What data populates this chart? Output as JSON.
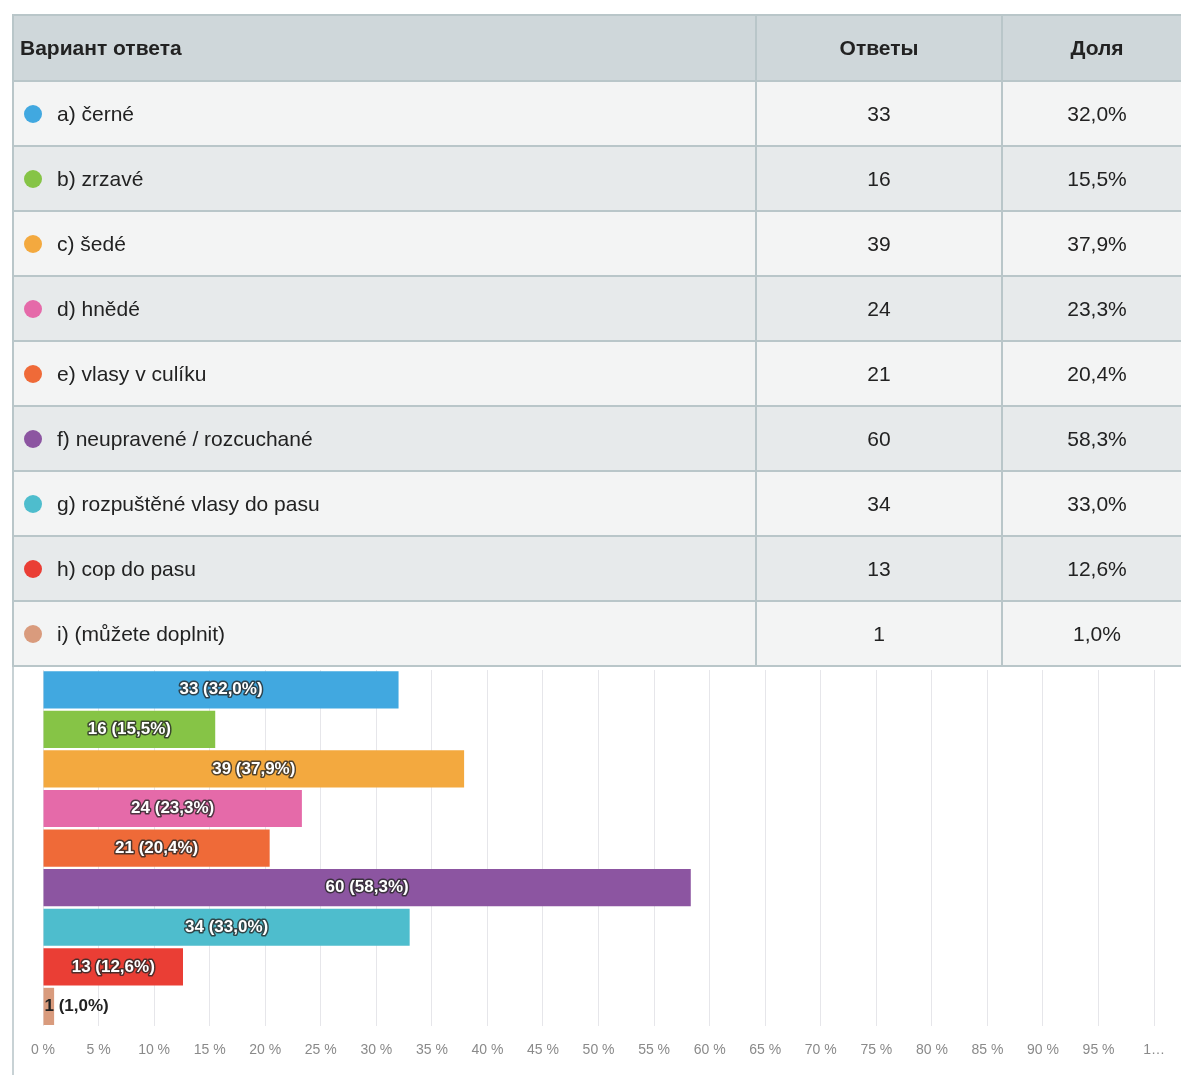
{
  "chart_data": {
    "type": "bar",
    "orientation": "horizontal",
    "categories": [
      null
    ],
    "series": [
      {
        "name": "a) černé",
        "color": "#41a8e0",
        "values": [
          32.0
        ],
        "value_labels": [
          "33 (32,0%)"
        ]
      },
      {
        "name": "b) zrzavé",
        "color": "#86c446",
        "values": [
          15.5
        ],
        "value_labels": [
          "16 (15,5%)"
        ]
      },
      {
        "name": "c) šedé",
        "color": "#f3a93f",
        "values": [
          37.9
        ],
        "value_labels": [
          "39 (37,9%)"
        ]
      },
      {
        "name": "d) hnědé",
        "color": "#e56aa9",
        "values": [
          23.3
        ],
        "value_labels": [
          "24 (23,3%)"
        ]
      },
      {
        "name": "e) vlasy v culíku",
        "color": "#ef6a38",
        "values": [
          20.4
        ],
        "value_labels": [
          "21 (20,4%)"
        ]
      },
      {
        "name": "f) neupravené / rozcuchané",
        "color": "#8c55a1",
        "values": [
          58.3
        ],
        "value_labels": [
          "60 (58,3%)"
        ]
      },
      {
        "name": "g) rozpuštěné vlasy do pasu",
        "color": "#4ebdcd",
        "values": [
          33.0
        ],
        "value_labels": [
          "34 (33,0%)"
        ]
      },
      {
        "name": "h) cop do pasu",
        "color": "#ea3e35",
        "values": [
          12.6
        ],
        "value_labels": [
          "13 (12,6%)"
        ]
      },
      {
        "name": "i) (můžete doplnit)",
        "color": "#d99b7d",
        "values": [
          1.0
        ],
        "value_labels": [
          "1 (1,0%)"
        ]
      }
    ],
    "xlim": [
      0,
      100
    ],
    "xticks": [
      {
        "value": 0,
        "label": "0 %"
      },
      {
        "value": 5,
        "label": "5 %"
      },
      {
        "value": 10,
        "label": "10 %"
      },
      {
        "value": 15,
        "label": "15 %"
      },
      {
        "value": 20,
        "label": "20 %"
      },
      {
        "value": 25,
        "label": "25 %"
      },
      {
        "value": 30,
        "label": "30 %"
      },
      {
        "value": 35,
        "label": "35 %"
      },
      {
        "value": 40,
        "label": "40 %"
      },
      {
        "value": 45,
        "label": "45 %"
      },
      {
        "value": 50,
        "label": "50 %"
      },
      {
        "value": 55,
        "label": "55 %"
      },
      {
        "value": 60,
        "label": "60 %"
      },
      {
        "value": 65,
        "label": "65 %"
      },
      {
        "value": 70,
        "label": "70 %"
      },
      {
        "value": 75,
        "label": "75 %"
      },
      {
        "value": 80,
        "label": "80 %"
      },
      {
        "value": 85,
        "label": "85 %"
      },
      {
        "value": 90,
        "label": "90 %"
      },
      {
        "value": 95,
        "label": "95 %"
      },
      {
        "value": 100,
        "label": "1…"
      }
    ],
    "grid": "x",
    "tick_labels": "x",
    "legend": "top",
    "legend_title": "Вариант ответа",
    "annotations": [
      "Ответы",
      "Доля",
      "33",
      "32,0%",
      "16",
      "15,5%",
      "39",
      "37,9%",
      "24",
      "23,3%",
      "21",
      "20,4%",
      "60",
      "58,3%",
      "34",
      "33,0%",
      "13",
      "12,6%",
      "1",
      "1,0%"
    ]
  }
}
